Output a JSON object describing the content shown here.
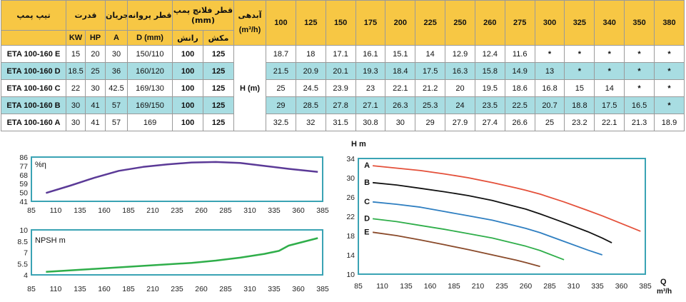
{
  "table": {
    "headers": {
      "pump_type": "تیپ پمپ",
      "power": "قدرت",
      "current": "جریان",
      "impeller_dia": "قطر پروانه",
      "flange_dia": "قطر فلانچ پمپ (mm)",
      "flow": "آبدهی",
      "flow_unit": "(m³/h)",
      "kw": "KW",
      "hp": "HP",
      "amp": "A",
      "d_mm": "D (mm)",
      "discharge": "رانش",
      "suction": "مکش"
    },
    "flow_columns": [
      "100",
      "125",
      "150",
      "175",
      "200",
      "225",
      "250",
      "260",
      "275",
      "300",
      "325",
      "340",
      "350",
      "380"
    ],
    "head_label": "H (m)",
    "rows": [
      {
        "model": "ETA 100-160 E",
        "kw": "15",
        "hp": "20",
        "amp": "30",
        "d": "150/110",
        "discharge": "100",
        "suction": "125",
        "heads": [
          "18.7",
          "18",
          "17.1",
          "16.1",
          "15.1",
          "14",
          "12.9",
          "12.4",
          "11.6",
          "*",
          "*",
          "*",
          "*",
          "*"
        ]
      },
      {
        "model": "ETA 100-160 D",
        "kw": "18.5",
        "hp": "25",
        "amp": "36",
        "d": "160/120",
        "discharge": "100",
        "suction": "125",
        "heads": [
          "21.5",
          "20.9",
          "20.1",
          "19.3",
          "18.4",
          "17.5",
          "16.3",
          "15.8",
          "14.9",
          "13",
          "*",
          "*",
          "*",
          "*"
        ]
      },
      {
        "model": "ETA 100-160 C",
        "kw": "22",
        "hp": "30",
        "amp": "42.5",
        "d": "169/130",
        "discharge": "100",
        "suction": "125",
        "heads": [
          "25",
          "24.5",
          "23.9",
          "23",
          "22.1",
          "21.2",
          "20",
          "19.5",
          "18.6",
          "16.8",
          "15",
          "14",
          "*",
          "*"
        ]
      },
      {
        "model": "ETA 100-160 B",
        "kw": "30",
        "hp": "41",
        "amp": "57",
        "d": "169/150",
        "discharge": "100",
        "suction": "125",
        "heads": [
          "29",
          "28.5",
          "27.8",
          "27.1",
          "26.3",
          "25.3",
          "24",
          "23.5",
          "22.5",
          "20.7",
          "18.8",
          "17.5",
          "16.5",
          "*"
        ]
      },
      {
        "model": "ETA 100-160 A",
        "kw": "30",
        "hp": "41",
        "amp": "57",
        "d": "169",
        "discharge": "100",
        "suction": "125",
        "heads": [
          "32.5",
          "32",
          "31.5",
          "30.8",
          "30",
          "29",
          "27.9",
          "27.4",
          "26.6",
          "25",
          "23.2",
          "22.1",
          "21.3",
          "18.9"
        ]
      }
    ]
  },
  "chart_data": [
    {
      "type": "line",
      "ylabel": "%η",
      "x_ticks": [
        "85",
        "110",
        "135",
        "160",
        "185",
        "210",
        "235",
        "260",
        "285",
        "310",
        "335",
        "360",
        "385"
      ],
      "y_ticks": [
        "86",
        "77",
        "68",
        "59",
        "50",
        "41"
      ],
      "xlim": [
        85,
        385
      ],
      "ylim": [
        41,
        86
      ],
      "color": "#5b3a97",
      "series": [
        {
          "x": [
            100,
            125,
            150,
            175,
            200,
            225,
            250,
            275,
            300,
            325,
            350,
            380
          ],
          "y": [
            49.5,
            57,
            65,
            72,
            76,
            78.5,
            80.5,
            81,
            80,
            77,
            74,
            71
          ]
        }
      ]
    },
    {
      "type": "line",
      "ylabel": "NPSH m",
      "x_ticks": [
        "85",
        "110",
        "135",
        "160",
        "185",
        "210",
        "235",
        "260",
        "285",
        "310",
        "335",
        "360",
        "385"
      ],
      "y_ticks": [
        "10",
        "8.5",
        "7",
        "5.5",
        "4"
      ],
      "xlim": [
        85,
        385
      ],
      "ylim": [
        4,
        10
      ],
      "color": "#2fae4a",
      "series": [
        {
          "x": [
            100,
            150,
            200,
            250,
            275,
            300,
            325,
            340,
            350,
            380
          ],
          "y": [
            4.4,
            4.8,
            5.2,
            5.6,
            5.9,
            6.3,
            6.8,
            7.2,
            7.9,
            8.9
          ]
        }
      ]
    },
    {
      "type": "line",
      "ylabel": "H m",
      "xlabel": "Q",
      "xunit": "m³/h",
      "x_ticks": [
        "85",
        "110",
        "135",
        "160",
        "185",
        "210",
        "235",
        "260",
        "285",
        "310",
        "335",
        "360",
        "385"
      ],
      "y_ticks": [
        "34",
        "30",
        "26",
        "22",
        "18",
        "14",
        "10"
      ],
      "xlim": [
        85,
        385
      ],
      "ylim": [
        10,
        34
      ],
      "series": [
        {
          "name": "A",
          "color": "#e4503a",
          "x": [
            100,
            125,
            150,
            175,
            200,
            225,
            250,
            260,
            275,
            300,
            325,
            340,
            350,
            380
          ],
          "y": [
            32.5,
            32,
            31.5,
            30.8,
            30,
            29,
            27.9,
            27.4,
            26.6,
            25,
            23.2,
            22.1,
            21.3,
            18.9
          ]
        },
        {
          "name": "B",
          "color": "#111111",
          "x": [
            100,
            125,
            150,
            175,
            200,
            225,
            250,
            260,
            275,
            300,
            325,
            340,
            350
          ],
          "y": [
            29,
            28.5,
            27.8,
            27.1,
            26.3,
            25.3,
            24,
            23.5,
            22.5,
            20.7,
            18.8,
            17.5,
            16.5
          ]
        },
        {
          "name": "C",
          "color": "#2f7fc1",
          "x": [
            100,
            125,
            150,
            175,
            200,
            225,
            250,
            260,
            275,
            300,
            325,
            340
          ],
          "y": [
            25,
            24.5,
            23.9,
            23,
            22.1,
            21.2,
            20,
            19.5,
            18.6,
            16.8,
            15,
            14
          ]
        },
        {
          "name": "D",
          "color": "#2fae4a",
          "x": [
            100,
            125,
            150,
            175,
            200,
            225,
            250,
            260,
            275,
            300
          ],
          "y": [
            21.5,
            20.9,
            20.1,
            19.3,
            18.4,
            17.5,
            16.3,
            15.8,
            14.9,
            13
          ]
        },
        {
          "name": "E",
          "color": "#8a4a2a",
          "x": [
            100,
            125,
            150,
            175,
            200,
            225,
            250,
            260,
            275
          ],
          "y": [
            18.7,
            18,
            17.1,
            16.1,
            15.1,
            14,
            12.9,
            12.4,
            11.6
          ]
        }
      ]
    }
  ]
}
